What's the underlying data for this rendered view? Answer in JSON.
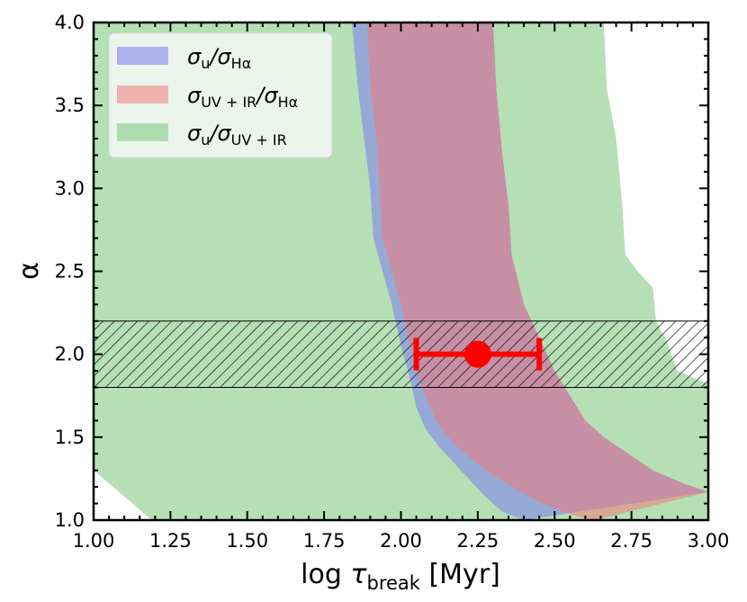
{
  "chart_data": {
    "type": "area",
    "title": "",
    "xlabel": {
      "main": "log  ",
      "tau": "τ",
      "sub": "break",
      "unit": " [Myr]"
    },
    "ylabel": "α",
    "xlim": [
      1.0,
      3.0
    ],
    "ylim": [
      1.0,
      4.0
    ],
    "xticks": [
      "1.00",
      "1.25",
      "1.50",
      "1.75",
      "2.00",
      "2.25",
      "2.50",
      "2.75",
      "3.00"
    ],
    "yticks": [
      "1.0",
      "1.5",
      "2.0",
      "2.5",
      "3.0",
      "3.5",
      "4.0"
    ],
    "legend_position": "top-left",
    "series": [
      {
        "name": "σu/σHα",
        "label_parts": {
          "a": "σ",
          "asub": "u",
          "b": "/σ",
          "bsub": "Hα"
        },
        "color": "#7b7bf0",
        "alpha": 0.55,
        "left_boundary": [
          [
            1.84,
            4.0
          ],
          [
            1.86,
            3.6
          ],
          [
            1.88,
            3.3
          ],
          [
            1.9,
            3.0
          ],
          [
            1.91,
            2.7
          ],
          [
            1.94,
            2.5
          ],
          [
            1.97,
            2.3
          ],
          [
            2.0,
            2.05
          ],
          [
            2.03,
            1.85
          ],
          [
            2.05,
            1.68
          ],
          [
            2.08,
            1.55
          ],
          [
            2.12,
            1.45
          ],
          [
            2.17,
            1.35
          ],
          [
            2.22,
            1.25
          ],
          [
            2.27,
            1.15
          ],
          [
            2.33,
            1.05
          ],
          [
            2.4,
            1.0
          ]
        ],
        "right_boundary": [
          [
            2.3,
            4.0
          ],
          [
            2.31,
            3.6
          ],
          [
            2.33,
            3.2
          ],
          [
            2.35,
            2.9
          ],
          [
            2.36,
            2.6
          ],
          [
            2.4,
            2.3
          ],
          [
            2.45,
            2.1
          ],
          [
            2.5,
            1.9
          ],
          [
            2.55,
            1.75
          ],
          [
            2.6,
            1.6
          ],
          [
            2.66,
            1.5
          ],
          [
            2.74,
            1.4
          ],
          [
            2.82,
            1.3
          ],
          [
            2.92,
            1.22
          ],
          [
            3.0,
            1.17
          ]
        ]
      },
      {
        "name": "σUV+IR/σHα",
        "label_parts": {
          "a": "σ",
          "asub": "UV + IR",
          "b": "/σ",
          "bsub": "Hα"
        },
        "color": "#f07a7a",
        "alpha": 0.55,
        "left_boundary": [
          [
            1.89,
            4.0
          ],
          [
            1.9,
            3.6
          ],
          [
            1.92,
            3.3
          ],
          [
            1.93,
            3.0
          ],
          [
            1.94,
            2.7
          ],
          [
            1.97,
            2.5
          ],
          [
            2.0,
            2.3
          ],
          [
            2.03,
            2.05
          ],
          [
            2.06,
            1.85
          ],
          [
            2.09,
            1.7
          ],
          [
            2.13,
            1.55
          ],
          [
            2.18,
            1.45
          ],
          [
            2.24,
            1.35
          ],
          [
            2.3,
            1.27
          ],
          [
            2.38,
            1.18
          ],
          [
            2.46,
            1.1
          ],
          [
            2.56,
            1.03
          ],
          [
            2.63,
            1.0
          ]
        ],
        "right_boundary": [
          [
            2.3,
            4.0
          ],
          [
            2.31,
            3.6
          ],
          [
            2.33,
            3.2
          ],
          [
            2.35,
            2.9
          ],
          [
            2.36,
            2.6
          ],
          [
            2.4,
            2.3
          ],
          [
            2.45,
            2.1
          ],
          [
            2.5,
            1.9
          ],
          [
            2.55,
            1.75
          ],
          [
            2.6,
            1.6
          ],
          [
            2.66,
            1.5
          ],
          [
            2.74,
            1.4
          ],
          [
            2.82,
            1.3
          ],
          [
            2.92,
            1.22
          ],
          [
            3.0,
            1.17
          ]
        ]
      },
      {
        "name": "σu/σUV+IR",
        "label_parts": {
          "a": "σ",
          "asub": "u",
          "b": "/σ",
          "bsub": "UV + IR"
        },
        "color": "#8fce8f",
        "alpha": 0.65,
        "outer_boundary": [
          [
            1.0,
            4.0
          ],
          [
            2.66,
            4.0
          ],
          [
            2.67,
            3.6
          ],
          [
            2.7,
            3.3
          ],
          [
            2.72,
            2.9
          ],
          [
            2.73,
            2.6
          ],
          [
            2.77,
            2.5
          ],
          [
            2.82,
            2.4
          ],
          [
            2.83,
            2.2
          ],
          [
            2.86,
            2.1
          ],
          [
            2.9,
            1.9
          ],
          [
            3.0,
            1.82
          ],
          [
            3.0,
            1.0
          ],
          [
            1.19,
            1.0
          ],
          [
            1.0,
            1.3
          ]
        ]
      }
    ],
    "hatched_band": {
      "y_min": 1.8,
      "y_max": 2.2
    },
    "point": {
      "x": 2.25,
      "y": 2.0,
      "xerr_low": 2.05,
      "xerr_high": 2.45,
      "color": "#ff0000"
    }
  }
}
